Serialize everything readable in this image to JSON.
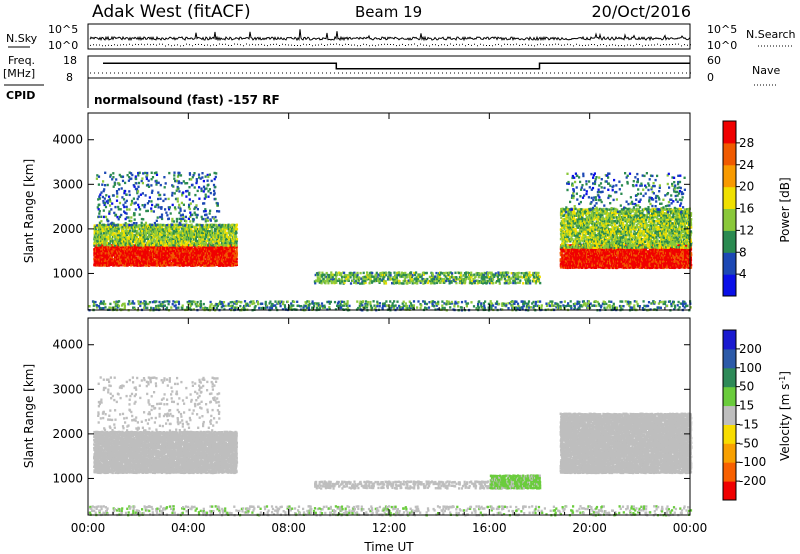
{
  "header": {
    "station": "Adak West (fitACF)",
    "beam": "Beam 19",
    "date": "20/Oct/2016"
  },
  "status_panel": {
    "nsky_label": "N.Sky",
    "nsky_ticks": [
      "10^5",
      "10^0"
    ],
    "nsearch_label": "N.Search",
    "freq_label_line1": "Freq.",
    "freq_label_line2": "[MHz]",
    "freq_ticks": [
      "18",
      "8"
    ],
    "nave_label": "Nave",
    "nave_ticks": [
      "60",
      "0"
    ],
    "cpid_label": "CPID",
    "cpid_text": "normalsound (fast) -157 RF",
    "freq_steps": [
      {
        "start_hour": 0.6,
        "end_hour": 9.9,
        "mhz": 14
      },
      {
        "start_hour": 9.9,
        "end_hour": 18.0,
        "mhz": 11
      },
      {
        "start_hour": 18.0,
        "end_hour": 24.0,
        "mhz": 14
      }
    ]
  },
  "colors": {
    "power_scale": [
      "#0a10e8",
      "#1c48b4",
      "#2a8a50",
      "#8ac83a",
      "#f0e000",
      "#f89a00",
      "#f05a00",
      "#f00000"
    ],
    "velocity_scale": [
      "#f00000",
      "#f86000",
      "#f8a000",
      "#f8dc00",
      "#bebebe",
      "#6acc3c",
      "#2e8a58",
      "#2c5aa8",
      "#1a1ad0"
    ],
    "ground_scatter": "#bebebe"
  },
  "chart_data": [
    {
      "type": "heatmap",
      "name": "power-panel",
      "ylabel": "Slant Range [km]",
      "x_ticks": [
        "00:00",
        "04:00",
        "08:00",
        "12:00",
        "16:00",
        "20:00",
        "00:00"
      ],
      "y_ticks": [
        1000,
        2000,
        3000,
        4000
      ],
      "xlim_hours": [
        0,
        24
      ],
      "ylim_km": [
        180,
        4600
      ],
      "colorbar_label": "Power [dB]",
      "colorbar_ticks": [
        "28",
        "24",
        "20",
        "16",
        "12",
        "8",
        "4"
      ],
      "colorbar_range": [
        0,
        32
      ],
      "scatter_regions": [
        {
          "t0": 0.2,
          "t1": 5.9,
          "r0": 1200,
          "r1": 1700,
          "value": 30,
          "density": 0.95
        },
        {
          "t0": 0.2,
          "t1": 5.9,
          "r0": 1650,
          "r1": 2150,
          "value": 14,
          "density": 0.7
        },
        {
          "t0": 0.3,
          "t1": 5.2,
          "r0": 2100,
          "r1": 3300,
          "value": 8,
          "density": 0.12
        },
        {
          "t0": 9.0,
          "t1": 18.0,
          "r0": 800,
          "r1": 1050,
          "value": 12,
          "density": 0.45
        },
        {
          "t0": 18.8,
          "t1": 24.0,
          "r0": 1150,
          "r1": 1700,
          "value": 30,
          "density": 0.95
        },
        {
          "t0": 18.8,
          "t1": 24.0,
          "r0": 1600,
          "r1": 2500,
          "value": 14,
          "density": 0.65
        },
        {
          "t0": 19.0,
          "t1": 23.8,
          "r0": 2400,
          "r1": 3300,
          "value": 8,
          "density": 0.1
        },
        {
          "t0": 0.0,
          "t1": 24.0,
          "r0": 200,
          "r1": 420,
          "value": 10,
          "density": 0.25
        }
      ]
    },
    {
      "type": "heatmap",
      "name": "velocity-panel",
      "xlabel": "Time UT",
      "ylabel": "Slant Range [km]",
      "x_ticks": [
        "00:00",
        "04:00",
        "08:00",
        "12:00",
        "16:00",
        "20:00",
        "00:00"
      ],
      "y_ticks": [
        1000,
        2000,
        3000,
        4000
      ],
      "xlim_hours": [
        0,
        24
      ],
      "ylim_km": [
        180,
        4600
      ],
      "colorbar_label": "Velocity [m s^-1]",
      "colorbar_ticks": [
        "200",
        "100",
        "50",
        "15",
        "-15",
        "-50",
        "-100",
        "-200"
      ],
      "colorbar_range": [
        -250,
        250
      ],
      "scatter_regions": [
        {
          "t0": 0.2,
          "t1": 5.9,
          "r0": 1150,
          "r1": 2100,
          "value": 0,
          "density": 0.9,
          "ground": true
        },
        {
          "t0": 0.3,
          "t1": 5.2,
          "r0": 2100,
          "r1": 3300,
          "value": 0,
          "density": 0.08,
          "ground": true
        },
        {
          "t0": 9.0,
          "t1": 16.5,
          "r0": 800,
          "r1": 1000,
          "value": 0,
          "density": 0.4,
          "ground": true
        },
        {
          "t0": 16.0,
          "t1": 18.0,
          "r0": 800,
          "r1": 1100,
          "value": 40,
          "density": 0.8
        },
        {
          "t0": 18.8,
          "t1": 24.0,
          "r0": 1150,
          "r1": 2500,
          "value": 0,
          "density": 0.9,
          "ground": true
        },
        {
          "t0": 0.0,
          "t1": 24.0,
          "r0": 200,
          "r1": 420,
          "value": 20,
          "density": 0.2
        }
      ]
    }
  ]
}
